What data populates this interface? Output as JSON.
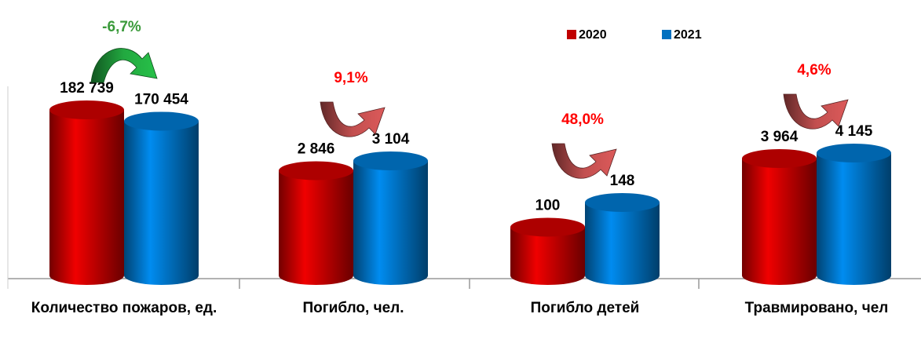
{
  "chart_data": {
    "type": "bar",
    "categories": [
      "Количество пожаров, ед.",
      "Погибло, чел.",
      "Погибло детей",
      "Травмировано, чел"
    ],
    "series": [
      {
        "name": "2020",
        "color": "#c00000",
        "values": [
          182739,
          2846,
          100,
          3964
        ],
        "value_labels": [
          "182 739",
          "2 846",
          "100",
          "3 964"
        ]
      },
      {
        "name": "2021",
        "color": "#0070c0",
        "values": [
          170454,
          3104,
          148,
          4145
        ],
        "value_labels": [
          "170 454",
          "3 104",
          "148",
          "4 145"
        ]
      }
    ],
    "changes": [
      {
        "value": -6.7,
        "label": "-6,7%",
        "color": "#3a9a3a"
      },
      {
        "value": 9.1,
        "label": "9,1%",
        "color": "#ff0000"
      },
      {
        "value": 48.0,
        "label": "48,0%",
        "color": "#ff0000"
      },
      {
        "value": 4.6,
        "label": "4,6%",
        "color": "#ff0000"
      }
    ],
    "legend": "top"
  }
}
